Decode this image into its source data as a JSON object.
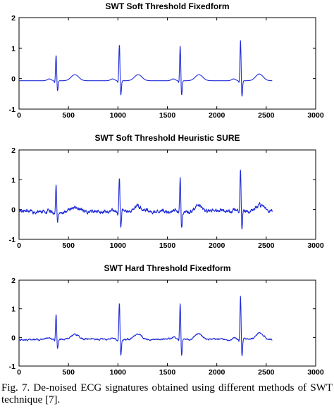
{
  "trace_color": "#1f2bd8",
  "chart_data": [
    {
      "type": "line",
      "title": "SWT Soft Threshold Fixedform",
      "xlim": [
        0,
        3000
      ],
      "ylim": [
        -1,
        2
      ],
      "xticks": [
        0,
        500,
        1000,
        1500,
        2000,
        2500,
        3000
      ],
      "yticks": [
        -1,
        0,
        1,
        2
      ],
      "grid": false,
      "signal": {
        "x_start": 0,
        "x_end": 2560,
        "noise": 0.0,
        "baseline": -0.07
      },
      "beats": [
        {
          "r_x": 375,
          "r_amplitude": 0.85,
          "s_amplitude": -0.35,
          "t_amplitude": 0.2
        },
        {
          "r_x": 1015,
          "r_amplitude": 1.2,
          "s_amplitude": -0.5,
          "t_amplitude": 0.2
        },
        {
          "r_x": 1630,
          "r_amplitude": 1.17,
          "s_amplitude": -0.5,
          "t_amplitude": 0.2
        },
        {
          "r_x": 2240,
          "r_amplitude": 1.35,
          "s_amplitude": -0.55,
          "t_amplitude": 0.22
        }
      ]
    },
    {
      "type": "line",
      "title": "SWT Soft Threshold Heuristic SURE",
      "xlim": [
        0,
        3000
      ],
      "ylim": [
        -1,
        2
      ],
      "xticks": [
        0,
        500,
        1000,
        1500,
        2000,
        2500,
        3000
      ],
      "yticks": [
        -1,
        0,
        1,
        2
      ],
      "grid": false,
      "signal": {
        "x_start": 0,
        "x_end": 2560,
        "noise": 0.045,
        "baseline": -0.07
      },
      "beats": [
        {
          "r_x": 375,
          "r_amplitude": 0.9,
          "s_amplitude": -0.4,
          "t_amplitude": 0.18
        },
        {
          "r_x": 1015,
          "r_amplitude": 1.15,
          "s_amplitude": -0.6,
          "t_amplitude": 0.15
        },
        {
          "r_x": 1630,
          "r_amplitude": 1.15,
          "s_amplitude": -0.55,
          "t_amplitude": 0.18
        },
        {
          "r_x": 2240,
          "r_amplitude": 1.45,
          "s_amplitude": -0.6,
          "t_amplitude": 0.2
        }
      ]
    },
    {
      "type": "line",
      "title": "SWT Hard Threshold Fixedform",
      "xlim": [
        0,
        3000
      ],
      "ylim": [
        -1,
        2
      ],
      "xticks": [
        0,
        500,
        1000,
        1500,
        2000,
        2500,
        3000
      ],
      "yticks": [
        -1,
        0,
        1,
        2
      ],
      "grid": false,
      "signal": {
        "x_start": 0,
        "x_end": 2560,
        "noise": 0.02,
        "baseline": -0.07
      },
      "beats": [
        {
          "r_x": 375,
          "r_amplitude": 0.9,
          "s_amplitude": -0.35,
          "t_amplitude": 0.18
        },
        {
          "r_x": 1015,
          "r_amplitude": 1.3,
          "s_amplitude": -0.6,
          "t_amplitude": 0.18
        },
        {
          "r_x": 1630,
          "r_amplitude": 1.3,
          "s_amplitude": -0.6,
          "t_amplitude": 0.2
        },
        {
          "r_x": 2240,
          "r_amplitude": 1.55,
          "s_amplitude": -0.62,
          "t_amplitude": 0.22
        }
      ]
    }
  ],
  "caption": "Fig. 7. De-noised ECG signatures obtained using different methods of SWT technique [7]."
}
